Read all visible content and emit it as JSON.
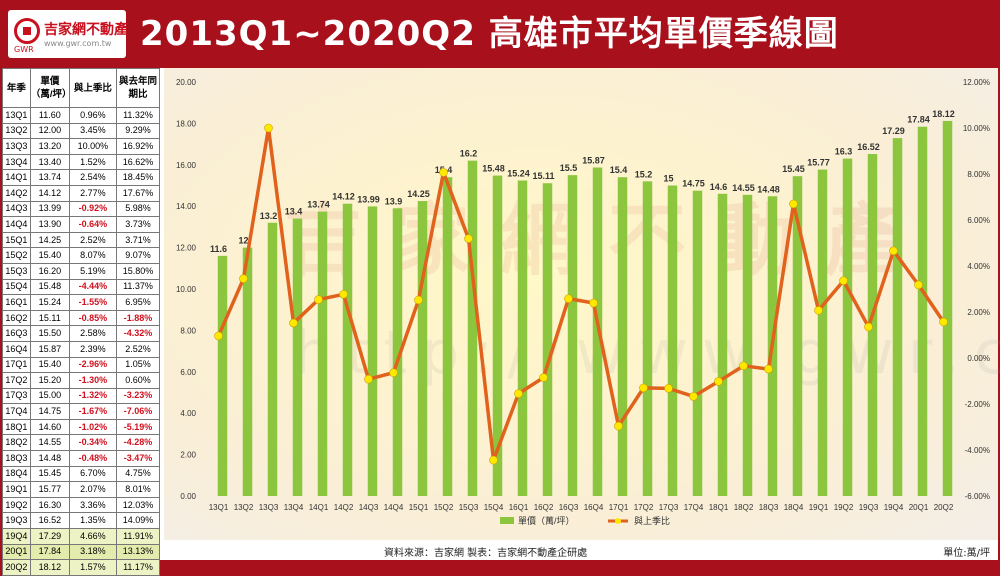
{
  "header": {
    "logo_name": "吉家網不動產",
    "logo_sub": "GWR",
    "logo_url": "www.gwr.com.tw",
    "title": "2013Q1~2020Q2  高雄市平均單價季線圖"
  },
  "table": {
    "headers": [
      "年季",
      "單價（萬/坪）",
      "與上季比",
      "與去年同期比"
    ],
    "rows": [
      [
        "13Q1",
        "11.60",
        "0.96%",
        "11.32%"
      ],
      [
        "13Q2",
        "12.00",
        "3.45%",
        "9.29%"
      ],
      [
        "13Q3",
        "13.20",
        "10.00%",
        "16.92%"
      ],
      [
        "13Q4",
        "13.40",
        "1.52%",
        "16.62%"
      ],
      [
        "14Q1",
        "13.74",
        "2.54%",
        "18.45%"
      ],
      [
        "14Q2",
        "14.12",
        "2.77%",
        "17.67%"
      ],
      [
        "14Q3",
        "13.99",
        "-0.92%",
        "5.98%"
      ],
      [
        "14Q4",
        "13.90",
        "-0.64%",
        "3.73%"
      ],
      [
        "15Q1",
        "14.25",
        "2.52%",
        "3.71%"
      ],
      [
        "15Q2",
        "15.40",
        "8.07%",
        "9.07%"
      ],
      [
        "15Q3",
        "16.20",
        "5.19%",
        "15.80%"
      ],
      [
        "15Q4",
        "15.48",
        "-4.44%",
        "11.37%"
      ],
      [
        "16Q1",
        "15.24",
        "-1.55%",
        "6.95%"
      ],
      [
        "16Q2",
        "15.11",
        "-0.85%",
        "-1.88%"
      ],
      [
        "16Q3",
        "15.50",
        "2.58%",
        "-4.32%"
      ],
      [
        "16Q4",
        "15.87",
        "2.39%",
        "2.52%"
      ],
      [
        "17Q1",
        "15.40",
        "-2.96%",
        "1.05%"
      ],
      [
        "17Q2",
        "15.20",
        "-1.30%",
        "0.60%"
      ],
      [
        "17Q3",
        "15.00",
        "-1.32%",
        "-3.23%"
      ],
      [
        "17Q4",
        "14.75",
        "-1.67%",
        "-7.06%"
      ],
      [
        "18Q1",
        "14.60",
        "-1.02%",
        "-5.19%"
      ],
      [
        "18Q2",
        "14.55",
        "-0.34%",
        "-4.28%"
      ],
      [
        "18Q3",
        "14.48",
        "-0.48%",
        "-3.47%"
      ],
      [
        "18Q4",
        "15.45",
        "6.70%",
        "4.75%"
      ],
      [
        "19Q1",
        "15.77",
        "2.07%",
        "8.01%"
      ],
      [
        "19Q2",
        "16.30",
        "3.36%",
        "12.03%"
      ],
      [
        "19Q3",
        "16.52",
        "1.35%",
        "14.09%"
      ],
      [
        "19Q4",
        "17.29",
        "4.66%",
        "11.91%"
      ],
      [
        "20Q1",
        "17.84",
        "3.18%",
        "13.13%"
      ],
      [
        "20Q2",
        "18.12",
        "1.57%",
        "11.17%"
      ]
    ]
  },
  "watermark": {
    "name": "吉家網不動產",
    "url": "http://www.gwr.com.tw"
  },
  "footer": {
    "source": "資料來源：吉家網  製表：吉家網不動產企研處",
    "unit": "單位:萬/坪"
  },
  "colors": {
    "bar": "#8cc63f",
    "line": "#e0621c",
    "marker": "#ffe800",
    "header_bg": "#a8101c",
    "negative": "#d0101e"
  },
  "chart_data": {
    "type": "bar",
    "categories": [
      "13Q1",
      "13Q2",
      "13Q3",
      "13Q4",
      "14Q1",
      "14Q2",
      "14Q3",
      "14Q4",
      "15Q1",
      "15Q2",
      "15Q3",
      "15Q4",
      "16Q1",
      "16Q2",
      "16Q3",
      "16Q4",
      "17Q1",
      "17Q2",
      "17Q3",
      "17Q4",
      "18Q1",
      "18Q2",
      "18Q3",
      "18Q4",
      "19Q1",
      "19Q2",
      "19Q3",
      "19Q4",
      "20Q1",
      "20Q2"
    ],
    "series": [
      {
        "name": "單價（萬/坪）",
        "type": "bar",
        "axis": "left",
        "values": [
          11.6,
          12.0,
          13.2,
          13.4,
          13.74,
          14.12,
          13.99,
          13.9,
          14.25,
          15.4,
          16.2,
          15.48,
          15.24,
          15.11,
          15.5,
          15.87,
          15.4,
          15.2,
          15.0,
          14.75,
          14.6,
          14.55,
          14.48,
          15.45,
          15.77,
          16.3,
          16.52,
          17.29,
          17.84,
          18.12
        ]
      },
      {
        "name": "與上季比",
        "type": "line",
        "axis": "right",
        "values": [
          0.96,
          3.45,
          10.0,
          1.52,
          2.54,
          2.77,
          -0.92,
          -0.64,
          2.52,
          8.07,
          5.19,
          -4.44,
          -1.55,
          -0.85,
          2.58,
          2.39,
          -2.96,
          -1.3,
          -1.32,
          -1.67,
          -1.02,
          -0.34,
          -0.48,
          6.7,
          2.07,
          3.36,
          1.35,
          4.66,
          3.18,
          1.57
        ]
      }
    ],
    "left_axis": {
      "ylim": [
        0,
        20
      ],
      "ticks": [
        "0.00",
        "2.00",
        "4.00",
        "6.00",
        "8.00",
        "10.00",
        "12.00",
        "14.00",
        "16.00",
        "18.00",
        "20.00"
      ]
    },
    "right_axis": {
      "ylim": [
        -6,
        12
      ],
      "ticks": [
        "-6.00%",
        "-4.00%",
        "-2.00%",
        "0.00%",
        "2.00%",
        "4.00%",
        "6.00%",
        "8.00%",
        "10.00%",
        "12.00%"
      ]
    },
    "legend_position": "bottom",
    "grid": false
  }
}
